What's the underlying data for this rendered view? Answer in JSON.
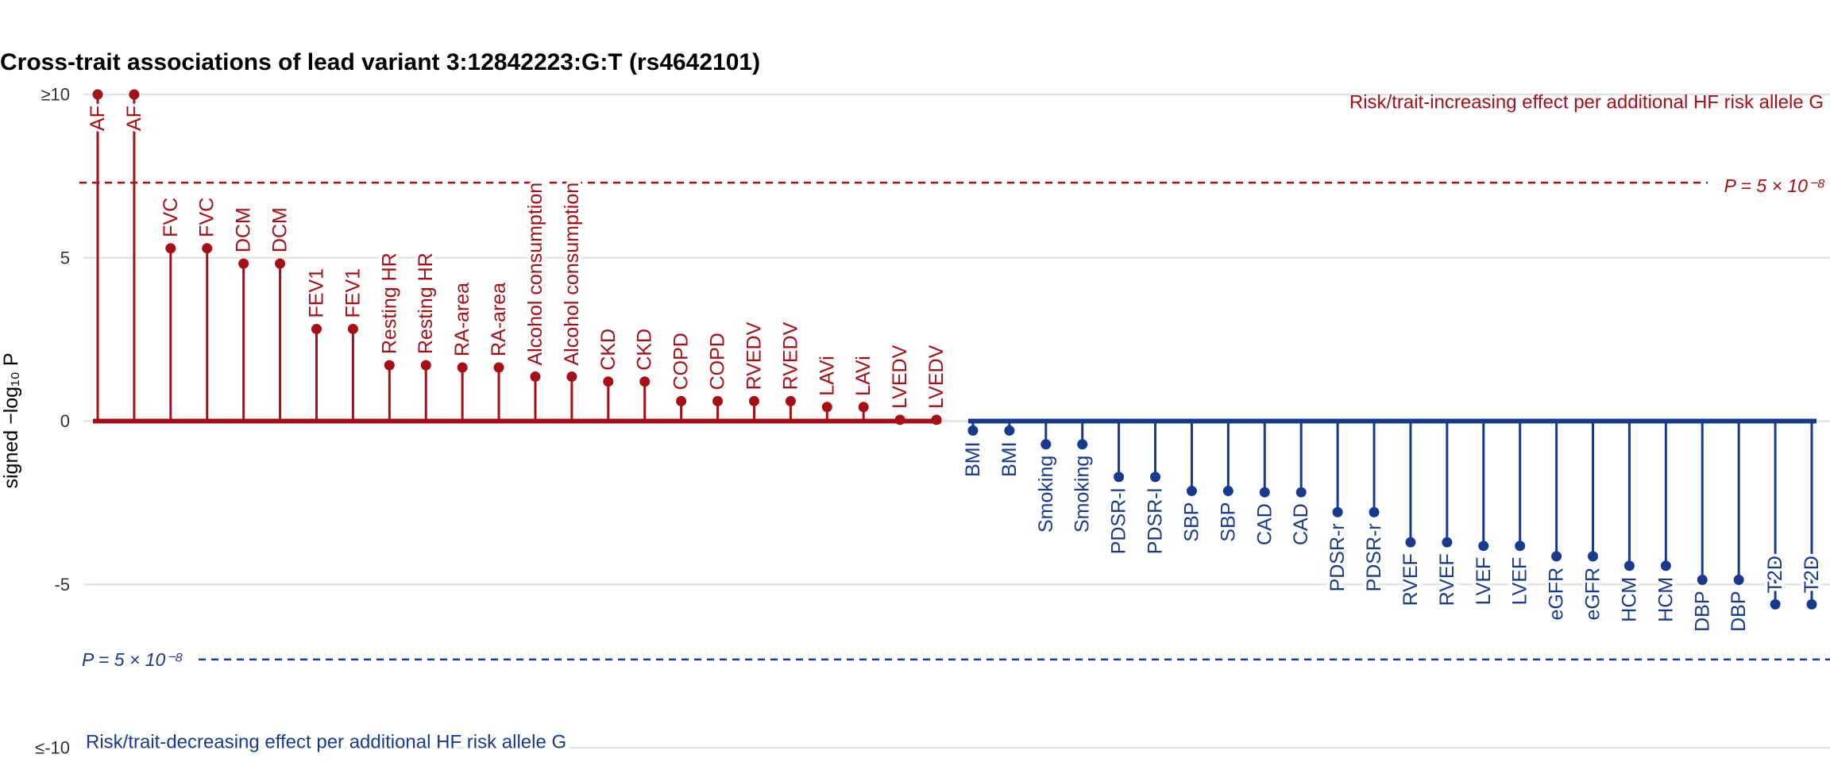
{
  "chart_data": {
    "type": "lollipop",
    "title": "Cross-trait associations of lead variant 3:12842223:G:T (rs4642101)",
    "y_label": "signed −log₁₀ P",
    "categories": [
      "AF",
      "AF",
      "FVC",
      "FVC",
      "DCM",
      "DCM",
      "FEV1",
      "FEV1",
      "Resting HR",
      "Resting HR",
      "RA-area",
      "RA-area",
      "Alcohol consumption",
      "Alcohol consumption",
      "CKD",
      "CKD",
      "COPD",
      "COPD",
      "RVEDV",
      "RVEDV",
      "LAVi",
      "LAVi",
      "LVEDV",
      "LVEDV",
      "BMI",
      "BMI",
      "Smoking",
      "Smoking",
      "PDSR-l",
      "PDSR-l",
      "SBP",
      "SBP",
      "CAD",
      "CAD",
      "PDSR-r",
      "PDSR-r",
      "RVEF",
      "RVEF",
      "LVEF",
      "LVEF",
      "eGFR",
      "eGFR",
      "HCM",
      "HCM",
      "DBP",
      "DBP",
      "T2D",
      "T2D"
    ],
    "values": [
      10,
      10,
      5.29,
      5.29,
      4.82,
      4.82,
      2.82,
      2.82,
      1.71,
      1.71,
      1.64,
      1.64,
      1.36,
      1.36,
      1.21,
      1.21,
      0.61,
      0.61,
      0.61,
      0.61,
      0.43,
      0.43,
      0.04,
      0.04,
      -0.29,
      -0.29,
      -0.71,
      -0.71,
      -1.71,
      -1.71,
      -2.14,
      -2.14,
      -2.18,
      -2.18,
      -2.79,
      -2.79,
      -3.71,
      -3.71,
      -3.82,
      -3.82,
      -4.14,
      -4.14,
      -4.43,
      -4.43,
      -4.86,
      -4.86,
      -5.61,
      -5.61
    ],
    "positive_color": "#a50f15",
    "negative_color": "#173a8c",
    "ylim": [
      -10,
      10
    ],
    "yticks": [
      {
        "value": -10,
        "label": "≤-10"
      },
      -5,
      0,
      5,
      {
        "value": 10,
        "label": "≥10"
      }
    ],
    "grid": true,
    "threshold": 7.3,
    "threshold_label_upper": "P = 5 × 10⁻⁸",
    "threshold_label_lower": "P = 5 × 10⁻⁸",
    "annotation_upper": "Risk/trait-increasing effect per additional HF risk allele G",
    "annotation_lower": "Risk/trait-decreasing effect per additional HF risk allele G"
  }
}
